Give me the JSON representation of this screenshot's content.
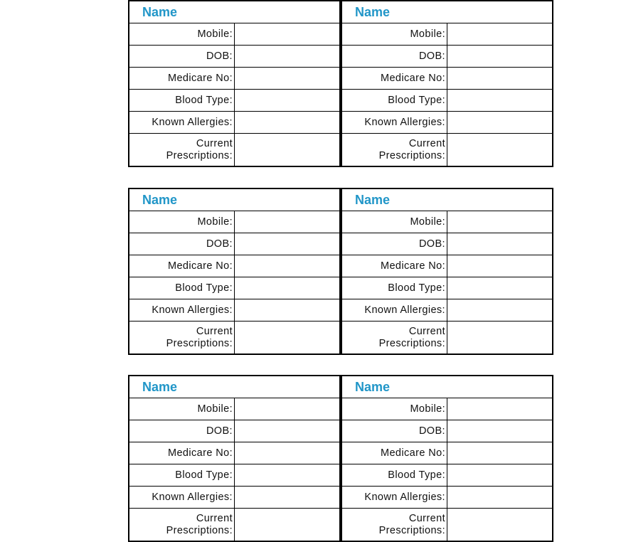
{
  "card": {
    "name_label": "Name",
    "fields": [
      "Mobile:",
      "DOB:",
      "Medicare No:",
      "Blood Type:",
      "Known Allergies:",
      "Current\nPrescriptions:"
    ]
  },
  "layout_rows": 3,
  "layout_cols": 2,
  "colors": {
    "name_heading": "#2196c8",
    "border": "#000000"
  }
}
